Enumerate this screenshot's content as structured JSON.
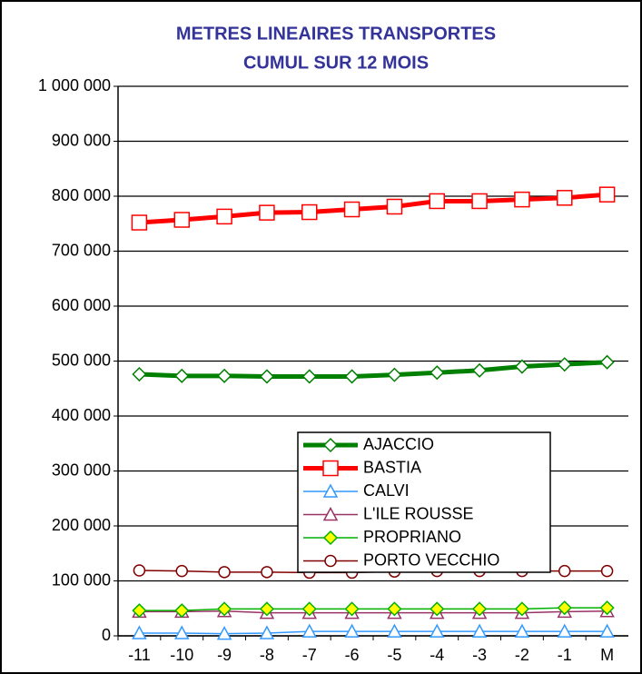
{
  "chart_data": {
    "type": "line",
    "title": "METRES LINEAIRES TRANSPORTES",
    "subtitle": "CUMUL SUR 12 MOIS",
    "categories": [
      "-11",
      "-10",
      "-9",
      "-8",
      "-7",
      "-6",
      "-5",
      "-4",
      "-3",
      "-2",
      "-1",
      "M"
    ],
    "ylim": [
      0,
      1000000
    ],
    "yticks": [
      0,
      {
        "value": 100000,
        "label": "100 000"
      },
      {
        "value": 200000,
        "label": "200 000"
      },
      {
        "value": 300000,
        "label": "300 000"
      },
      {
        "value": 400000,
        "label": "400 000"
      },
      {
        "value": 500000,
        "label": "500 000"
      },
      {
        "value": 600000,
        "label": "600 000"
      },
      {
        "value": 700000,
        "label": "700 000"
      },
      {
        "value": 800000,
        "label": "800 000"
      },
      {
        "value": 900000,
        "label": "900 000"
      },
      {
        "value": 1000000,
        "label": "1 000 000"
      }
    ],
    "grid": true,
    "series": [
      {
        "name": "AJACCIO",
        "color": "#008000",
        "marker": "diamond",
        "marker_fill": "#ffffff",
        "line_width": 5,
        "values": [
          476000,
          473000,
          473000,
          472000,
          472000,
          472000,
          475000,
          479000,
          483000,
          490000,
          494000,
          498000
        ]
      },
      {
        "name": "BASTIA",
        "color": "#ff0000",
        "marker": "square",
        "marker_fill": "#ffffff",
        "line_width": 5,
        "values": [
          752000,
          757000,
          763000,
          770000,
          771000,
          776000,
          781000,
          791000,
          791000,
          794000,
          797000,
          803000
        ]
      },
      {
        "name": "CALVI",
        "color": "#3399ff",
        "marker": "triangle",
        "marker_fill": "#ffffff",
        "line_width": 1.5,
        "values": [
          5000,
          5000,
          4000,
          5000,
          8000,
          8000,
          8000,
          8000,
          8000,
          8000,
          8000,
          8000
        ]
      },
      {
        "name": "L'ILE ROUSSE",
        "color": "#993366",
        "marker": "triangle",
        "marker_fill": "#ffffff",
        "line_width": 1.5,
        "values": [
          44000,
          44000,
          45000,
          42000,
          42000,
          42000,
          42000,
          42000,
          42000,
          42000,
          44000,
          45000
        ]
      },
      {
        "name": "PROPRIANO",
        "color": "#00b000",
        "marker": "diamond",
        "marker_fill": "#ffff00",
        "line_width": 1.5,
        "values": [
          46000,
          46000,
          49000,
          49000,
          49000,
          49000,
          49000,
          49000,
          49000,
          49000,
          51000,
          51000
        ]
      },
      {
        "name": "PORTO VECCHIO",
        "color": "#800000",
        "marker": "circle",
        "marker_fill": "#ffffff",
        "line_width": 1.5,
        "values": [
          119000,
          118000,
          116000,
          116000,
          115000,
          115000,
          117000,
          118000,
          118000,
          118000,
          118000,
          118000
        ]
      }
    ]
  }
}
